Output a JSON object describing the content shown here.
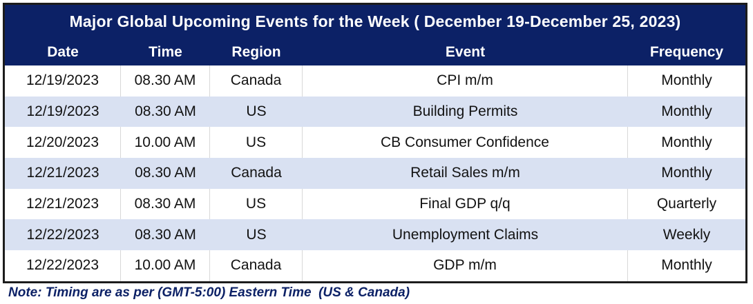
{
  "chart_data": {
    "type": "table",
    "title": "Major Global Upcoming Events for the Week ( December 19-December 25, 2023)",
    "columns": [
      "Date",
      "Time",
      "Region",
      "Event",
      "Frequency"
    ],
    "rows": [
      {
        "date": "12/19/2023",
        "time": "08.30 AM",
        "region": "Canada",
        "event": "CPI m/m",
        "frequency": "Monthly"
      },
      {
        "date": "12/19/2023",
        "time": "08.30 AM",
        "region": "US",
        "event": "Building Permits",
        "frequency": "Monthly"
      },
      {
        "date": "12/20/2023",
        "time": "10.00 AM",
        "region": "US",
        "event": "CB Consumer Confidence",
        "frequency": "Monthly"
      },
      {
        "date": "12/21/2023",
        "time": "08.30 AM",
        "region": "Canada",
        "event": "Retail Sales m/m",
        "frequency": "Monthly"
      },
      {
        "date": "12/21/2023",
        "time": "08.30 AM",
        "region": "US",
        "event": "Final GDP q/q",
        "frequency": "Quarterly"
      },
      {
        "date": "12/22/2023",
        "time": "08.30 AM",
        "region": "US",
        "event": "Unemployment Claims",
        "frequency": "Weekly"
      },
      {
        "date": "12/22/2023",
        "time": "10.00 AM",
        "region": "Canada",
        "event": "GDP m/m",
        "frequency": "Monthly"
      }
    ],
    "layout_hints": {
      "header_style": "dark-navy band with white bold text",
      "alternating_rows": true
    }
  },
  "note": "Note: Timing are as per (GMT-5:00) Eastern Time  (US & Canada)",
  "colors": {
    "header_bg": "#0c2166",
    "row_alt_bg": "#d9e1f2",
    "row_bg": "#ffffff",
    "outer_border": "#1c1c1c",
    "gridline": "#d8d8d8",
    "body_text": "#121212",
    "note_text": "#0c2166"
  }
}
